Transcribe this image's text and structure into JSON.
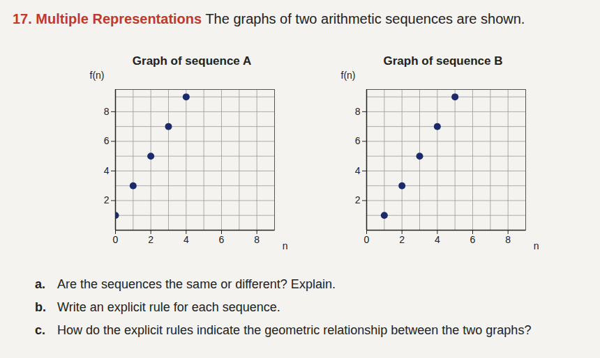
{
  "problem": {
    "number": "17.",
    "heading": "Multiple Representations",
    "text": "The graphs of two arithmetic sequences are shown."
  },
  "chart_data": [
    {
      "type": "scatter",
      "title": "Graph of sequence A",
      "x_label": "n",
      "y_label": "f(n)",
      "x": [
        0,
        1,
        2,
        3,
        4
      ],
      "values": [
        1,
        3,
        5,
        7,
        9
      ],
      "color": "#1b2a6b",
      "marker": "circle",
      "xlim": [
        0,
        9
      ],
      "ylim": [
        0,
        9.5
      ],
      "xticks": [
        0,
        2,
        4,
        6,
        8
      ],
      "yticks": [
        2,
        4,
        6,
        8
      ],
      "grid": true
    },
    {
      "type": "scatter",
      "title": "Graph of sequence B",
      "x_label": "n",
      "y_label": "f(n)",
      "x": [
        1,
        2,
        3,
        4,
        5
      ],
      "values": [
        1,
        3,
        5,
        7,
        9
      ],
      "color": "#1b2a6b",
      "marker": "circle",
      "xlim": [
        0,
        9
      ],
      "ylim": [
        0,
        9.5
      ],
      "xticks": [
        0,
        2,
        4,
        6,
        8
      ],
      "yticks": [
        2,
        4,
        6,
        8
      ],
      "grid": true
    }
  ],
  "questions": [
    {
      "label": "a.",
      "text": "Are the sequences the same or different? Explain."
    },
    {
      "label": "b.",
      "text": "Write an explicit rule for each sequence."
    },
    {
      "label": "c.",
      "text": "How do the explicit rules indicate the geometric relationship between the two graphs?"
    }
  ]
}
